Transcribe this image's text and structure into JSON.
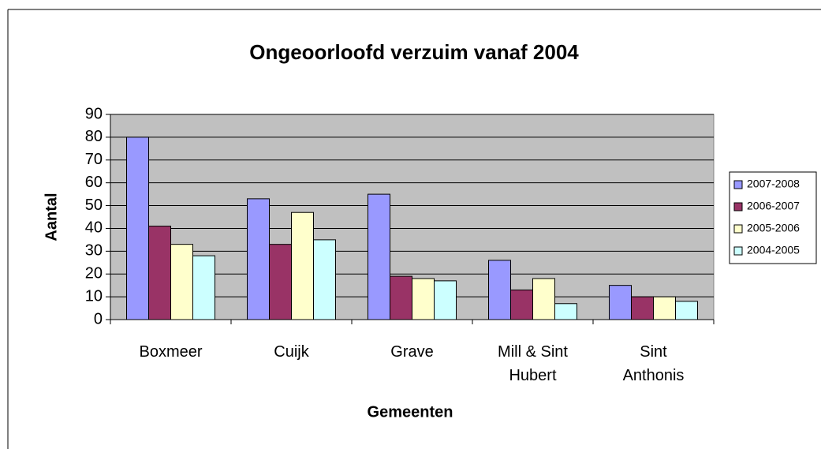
{
  "chart_data": {
    "type": "bar",
    "title": "Ongeoorloofd verzuim vanaf 2004",
    "x_label": "Gemeenten",
    "y_label": "Aantal",
    "categories": [
      "Boxmeer",
      "Cuijk",
      "Grave",
      "Mill & Sint Hubert",
      "Sint Anthonis"
    ],
    "series": [
      {
        "name": "2007-2008",
        "color": "#9999ff",
        "values": [
          80,
          53,
          55,
          26,
          15
        ]
      },
      {
        "name": "2006-2007",
        "color": "#993366",
        "values": [
          41,
          33,
          19,
          13,
          10
        ]
      },
      {
        "name": "2005-2006",
        "color": "#ffffcc",
        "values": [
          33,
          47,
          18,
          18,
          10
        ]
      },
      {
        "name": "2004-2005",
        "color": "#ccffff",
        "values": [
          28,
          35,
          17,
          7,
          8
        ]
      }
    ],
    "ylim": [
      0,
      90
    ],
    "yticks": [
      0,
      10,
      20,
      30,
      40,
      50,
      60,
      70,
      80,
      90
    ],
    "grid": true,
    "legend": "right",
    "plot_background": "#c0c0c0"
  }
}
